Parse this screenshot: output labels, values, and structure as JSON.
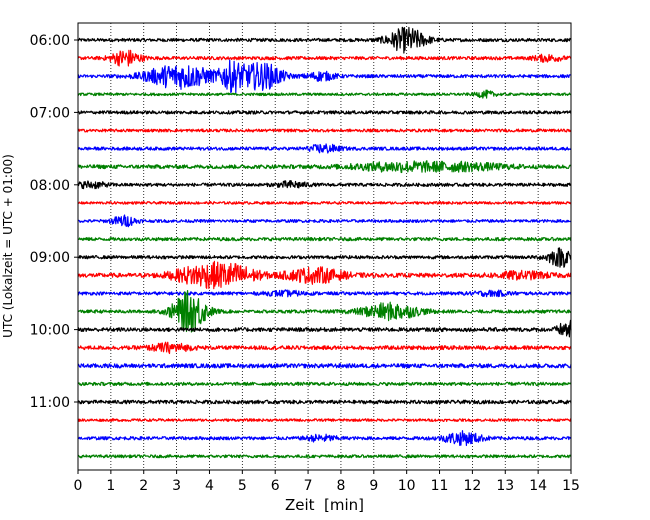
{
  "chart_data": {
    "type": "line",
    "title": "",
    "xlabel": "Zeit  [min]",
    "ylabel": "UTC (Lokalzeit = UTC + 01:00)",
    "xlim": [
      0,
      15
    ],
    "x_ticks": [
      0,
      1,
      2,
      3,
      4,
      5,
      6,
      7,
      8,
      9,
      10,
      11,
      12,
      13,
      14,
      15
    ],
    "grid": "vertical-dotted",
    "y_tick_labels": [
      "06:00",
      "07:00",
      "08:00",
      "09:00",
      "10:00",
      "11:00"
    ],
    "trace_colors": [
      "#000000",
      "#ff0000",
      "#0000ff",
      "#008000"
    ],
    "traces": [
      {
        "time": "06:00",
        "color": "#000000",
        "amp": 1.0,
        "events": [
          [
            10.0,
            12,
            0.4
          ]
        ]
      },
      {
        "time": "06:15",
        "color": "#ff0000",
        "amp": 1.0,
        "events": [
          [
            1.45,
            8,
            0.3
          ],
          [
            14.3,
            3,
            0.3
          ]
        ]
      },
      {
        "time": "06:30",
        "color": "#0000ff",
        "amp": 1.0,
        "events": [
          [
            3.1,
            12,
            0.7
          ],
          [
            4.7,
            14,
            0.25
          ],
          [
            5.4,
            10,
            0.3
          ],
          [
            5.9,
            8,
            0.3
          ],
          [
            7.4,
            4,
            0.3
          ]
        ]
      },
      {
        "time": "06:45",
        "color": "#008000",
        "amp": 0.8,
        "events": [
          [
            12.4,
            3,
            0.2
          ]
        ]
      },
      {
        "time": "07:00",
        "color": "#000000",
        "amp": 1.0,
        "events": []
      },
      {
        "time": "07:15",
        "color": "#ff0000",
        "amp": 0.9,
        "events": []
      },
      {
        "time": "07:30",
        "color": "#0000ff",
        "amp": 1.0,
        "events": [
          [
            7.5,
            4,
            0.3
          ]
        ]
      },
      {
        "time": "07:45",
        "color": "#008000",
        "amp": 1.2,
        "events": [
          [
            9.8,
            4,
            1.0
          ],
          [
            11.8,
            3,
            0.9
          ]
        ]
      },
      {
        "time": "08:00",
        "color": "#000000",
        "amp": 1.0,
        "events": [
          [
            0.4,
            3,
            0.3
          ],
          [
            6.5,
            3,
            0.3
          ]
        ]
      },
      {
        "time": "08:15",
        "color": "#ff0000",
        "amp": 0.8,
        "events": []
      },
      {
        "time": "08:30",
        "color": "#0000ff",
        "amp": 0.9,
        "events": [
          [
            1.4,
            5,
            0.25
          ]
        ]
      },
      {
        "time": "08:45",
        "color": "#008000",
        "amp": 1.0,
        "events": []
      },
      {
        "time": "09:00",
        "color": "#000000",
        "amp": 1.0,
        "events": [
          [
            14.7,
            9,
            0.3
          ]
        ]
      },
      {
        "time": "09:15",
        "color": "#ff0000",
        "amp": 1.3,
        "events": [
          [
            3.8,
            10,
            0.6
          ],
          [
            4.8,
            8,
            0.5
          ],
          [
            7.2,
            7,
            0.6
          ],
          [
            13.5,
            3,
            0.6
          ]
        ]
      },
      {
        "time": "09:30",
        "color": "#0000ff",
        "amp": 1.0,
        "events": [
          [
            6.3,
            2,
            0.4
          ],
          [
            12.6,
            2,
            0.4
          ]
        ]
      },
      {
        "time": "09:45",
        "color": "#008000",
        "amp": 1.0,
        "events": [
          [
            3.4,
            20,
            0.35
          ],
          [
            9.5,
            8,
            0.6
          ]
        ]
      },
      {
        "time": "10:00",
        "color": "#000000",
        "amp": 1.2,
        "events": [
          [
            14.9,
            8,
            0.2
          ]
        ]
      },
      {
        "time": "10:15",
        "color": "#ff0000",
        "amp": 1.2,
        "events": [
          [
            2.8,
            4,
            0.4
          ]
        ]
      },
      {
        "time": "10:30",
        "color": "#0000ff",
        "amp": 1.3,
        "events": []
      },
      {
        "time": "10:45",
        "color": "#008000",
        "amp": 1.0,
        "events": []
      },
      {
        "time": "11:00",
        "color": "#000000",
        "amp": 1.1,
        "events": []
      },
      {
        "time": "11:15",
        "color": "#ff0000",
        "amp": 0.8,
        "events": []
      },
      {
        "time": "11:30",
        "color": "#0000ff",
        "amp": 1.0,
        "events": [
          [
            11.7,
            6,
            0.4
          ],
          [
            7.4,
            3,
            0.3
          ]
        ]
      },
      {
        "time": "11:45",
        "color": "#008000",
        "amp": 0.9,
        "events": []
      }
    ]
  }
}
